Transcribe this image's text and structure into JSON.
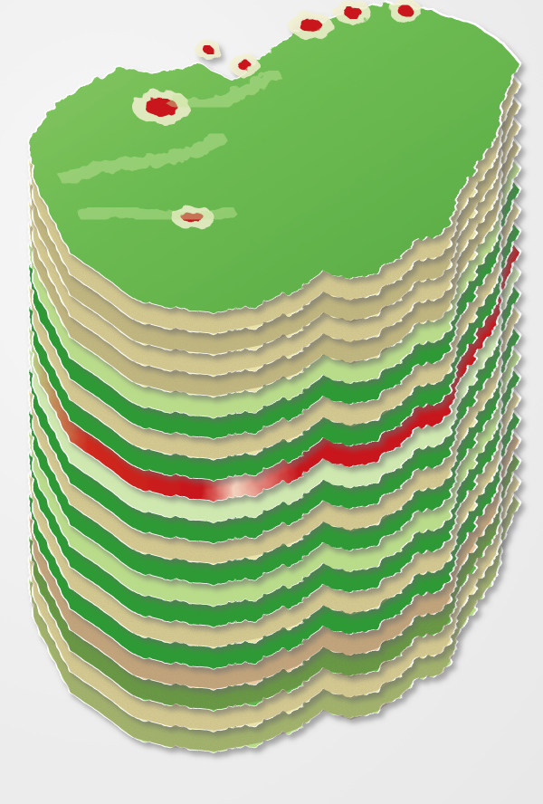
{
  "figure": {
    "kind": "stacked-raster-layers",
    "layer_count": 22,
    "palette": {
      "dark_green": "#2f9a34",
      "mid_green": "#62b44d",
      "light_green": "#b9dc8a",
      "pale_yellow": "#e8e2a8",
      "tan": "#b5a06a",
      "brown_speckle": "#7e6a3a",
      "salmon": "#e7a184",
      "red": "#c8161b",
      "white_edge": "#ffffff",
      "shadow": "#9a9a9a"
    },
    "layers_bottom_to_top": [
      {
        "id": "L01",
        "style": "light_green_speckled"
      },
      {
        "id": "L02",
        "style": "tan_speckled"
      },
      {
        "id": "L03",
        "style": "green_speckled"
      },
      {
        "id": "L04",
        "style": "salmon_speckled"
      },
      {
        "id": "L05",
        "style": "dark_green"
      },
      {
        "id": "L06",
        "style": "tan_speckled"
      },
      {
        "id": "L07",
        "style": "dark_green"
      },
      {
        "id": "L08",
        "style": "light_green"
      },
      {
        "id": "L09",
        "style": "dark_green"
      },
      {
        "id": "L10",
        "style": "tan_speckled"
      },
      {
        "id": "L11",
        "style": "dark_green"
      },
      {
        "id": "L12",
        "style": "light_green_white"
      },
      {
        "id": "L13",
        "style": "red_hot"
      },
      {
        "id": "L14",
        "style": "dark_green"
      },
      {
        "id": "L15",
        "style": "tan_speckled"
      },
      {
        "id": "L16",
        "style": "dark_green"
      },
      {
        "id": "L17",
        "style": "light_green"
      },
      {
        "id": "L18",
        "style": "pale_yellow"
      },
      {
        "id": "L19",
        "style": "tan_speckled"
      },
      {
        "id": "L20",
        "style": "pale_yellow"
      },
      {
        "id": "L21",
        "style": "tan_speckled"
      },
      {
        "id": "L22",
        "style": "elevation_top"
      }
    ]
  }
}
